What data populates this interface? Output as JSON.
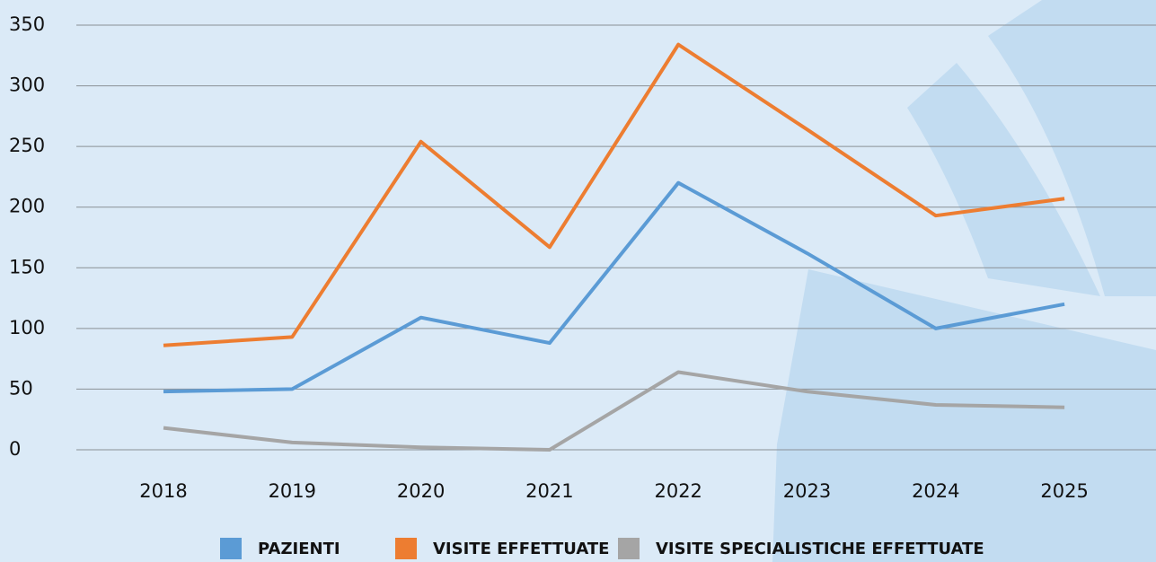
{
  "chart_data": {
    "type": "line",
    "categories": [
      "2018",
      "2019",
      "2020",
      "2021",
      "2022",
      "2023",
      "2024",
      "2025"
    ],
    "series": [
      {
        "name": "PAZIENTI",
        "color": "#5b9bd5",
        "values": [
          48,
          50,
          109,
          88,
          220,
          162,
          100,
          120
        ]
      },
      {
        "name": "VISITE EFFETTUATE",
        "color": "#ed7d31",
        "values": [
          86,
          93,
          254,
          167,
          334,
          264,
          193,
          207
        ]
      },
      {
        "name": "VISITE SPECIALISTICHE EFFETTUATE",
        "color": "#a5a5a5",
        "values": [
          18,
          6,
          2,
          0,
          64,
          48,
          37,
          35
        ]
      }
    ],
    "ylim": [
      0,
      350
    ],
    "yticks": [
      0,
      50,
      100,
      150,
      200,
      250,
      300,
      350
    ],
    "grid": true,
    "legend": "bottom"
  }
}
